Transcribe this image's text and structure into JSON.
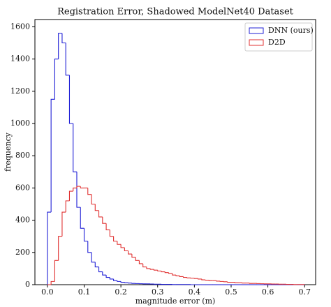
{
  "chart_data": {
    "type": "step_histogram",
    "title": "Registration Error, Shadowed ModelNet40 Dataset",
    "x_label": "magnitude error (m)",
    "y_label": "frequency",
    "bins": [
      0.0,
      0.01,
      0.02,
      0.03,
      0.04,
      0.05,
      0.06,
      0.07,
      0.08,
      0.09,
      0.1,
      0.11,
      0.12,
      0.13,
      0.14,
      0.15,
      0.16,
      0.17,
      0.18,
      0.19,
      0.2,
      0.21,
      0.22,
      0.23,
      0.24,
      0.25,
      0.26,
      0.27,
      0.28,
      0.29,
      0.3,
      0.31,
      0.32,
      0.33,
      0.34,
      0.35,
      0.36,
      0.37,
      0.38,
      0.39,
      0.4,
      0.41,
      0.42,
      0.43,
      0.44,
      0.45,
      0.46,
      0.47,
      0.48,
      0.49,
      0.5,
      0.51,
      0.52,
      0.53,
      0.54,
      0.55,
      0.56,
      0.57,
      0.58,
      0.59,
      0.6,
      0.61,
      0.62,
      0.63,
      0.64,
      0.65,
      0.66,
      0.67,
      0.68,
      0.69,
      0.7
    ],
    "series": [
      {
        "name": "DNN (ours)",
        "color": "#1f1fd6",
        "values": [
          450,
          1150,
          1400,
          1560,
          1500,
          1300,
          1000,
          700,
          480,
          350,
          270,
          200,
          140,
          110,
          80,
          60,
          45,
          35,
          25,
          20,
          15,
          12,
          10,
          8,
          7,
          6,
          5,
          5,
          4,
          3,
          3,
          2,
          2,
          2,
          1,
          1,
          1,
          1,
          1,
          0,
          0,
          0,
          0,
          0,
          0,
          0,
          0,
          0,
          0,
          0,
          0,
          0,
          0,
          0,
          0,
          0,
          0,
          0,
          0,
          0,
          0,
          0,
          0,
          0,
          0,
          0,
          0,
          0,
          0,
          0
        ]
      },
      {
        "name": "D2D",
        "color": "#e03030",
        "values": [
          0,
          20,
          150,
          300,
          450,
          520,
          580,
          600,
          610,
          600,
          600,
          560,
          500,
          460,
          420,
          380,
          340,
          300,
          270,
          250,
          230,
          210,
          190,
          170,
          150,
          130,
          110,
          100,
          95,
          90,
          85,
          80,
          75,
          70,
          60,
          55,
          50,
          45,
          42,
          40,
          38,
          35,
          30,
          28,
          25,
          25,
          22,
          20,
          18,
          15,
          15,
          12,
          12,
          10,
          10,
          8,
          8,
          7,
          6,
          5,
          5,
          4,
          4,
          3,
          3,
          2,
          2,
          1,
          1,
          1
        ]
      }
    ],
    "xlim": [
      -0.034,
      0.73
    ],
    "ylim": [
      0,
      1645
    ],
    "xticks": [
      {
        "value": 0,
        "label": "0.0"
      },
      0.1,
      0.2,
      0.3,
      0.4,
      0.5,
      0.6,
      0.7
    ],
    "yticks": [
      0,
      200,
      400,
      600,
      800,
      1000,
      1200,
      1400,
      1600
    ],
    "legend": "upper right",
    "grid": false
  }
}
